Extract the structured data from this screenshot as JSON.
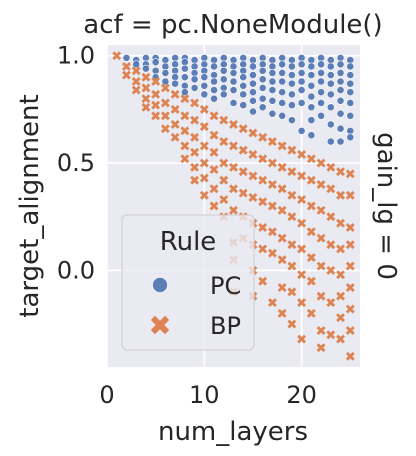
{
  "chart_data": {
    "type": "scatter",
    "title": "acf = pc.NoneModule()",
    "facet_row_label": "gain_lg = 0",
    "xlabel": "num_layers",
    "ylabel": "target_alignment",
    "xlim": [
      0,
      26
    ],
    "ylim": [
      -0.45,
      1.05
    ],
    "xticks": [
      {
        "value": 0,
        "label": "0"
      },
      {
        "value": 10,
        "label": "10"
      },
      {
        "value": 20,
        "label": "20"
      }
    ],
    "yticks": [
      {
        "value": 0.0,
        "label": "0.0"
      },
      {
        "value": 0.5,
        "label": "0.5"
      },
      {
        "value": 1.0,
        "label": "1.0"
      }
    ],
    "grid": true,
    "legend": {
      "title": "Rule",
      "placement": "lower-left"
    },
    "colors": {
      "PC": "#4c72b0",
      "BP": "#dd8452",
      "background": "#eaeaf2",
      "grid": "#ffffff"
    },
    "series": [
      {
        "name": "PC",
        "marker": "circle",
        "points": [
          [
            2,
            0.99
          ],
          [
            3,
            0.98
          ],
          [
            3,
            0.96
          ],
          [
            4,
            0.99
          ],
          [
            4,
            0.96
          ],
          [
            4,
            0.94
          ],
          [
            5,
            0.99
          ],
          [
            5,
            0.97
          ],
          [
            5,
            0.93
          ],
          [
            5,
            0.9
          ],
          [
            6,
            0.98
          ],
          [
            6,
            0.95
          ],
          [
            6,
            0.92
          ],
          [
            6,
            0.88
          ],
          [
            7,
            0.99
          ],
          [
            7,
            0.96
          ],
          [
            7,
            0.93
          ],
          [
            7,
            0.9
          ],
          [
            7,
            0.87
          ],
          [
            8,
            0.99
          ],
          [
            8,
            0.97
          ],
          [
            8,
            0.94
          ],
          [
            8,
            0.9
          ],
          [
            8,
            0.86
          ],
          [
            8,
            0.83
          ],
          [
            9,
            0.98
          ],
          [
            9,
            0.95
          ],
          [
            9,
            0.92
          ],
          [
            9,
            0.89
          ],
          [
            9,
            0.85
          ],
          [
            10,
            0.99
          ],
          [
            10,
            0.96
          ],
          [
            10,
            0.93
          ],
          [
            10,
            0.9
          ],
          [
            10,
            0.86
          ],
          [
            10,
            0.82
          ],
          [
            11,
            0.98
          ],
          [
            11,
            0.95
          ],
          [
            11,
            0.91
          ],
          [
            11,
            0.88
          ],
          [
            11,
            0.84
          ],
          [
            11,
            0.8
          ],
          [
            12,
            0.99
          ],
          [
            12,
            0.96
          ],
          [
            12,
            0.93
          ],
          [
            12,
            0.89
          ],
          [
            12,
            0.85
          ],
          [
            12,
            0.82
          ],
          [
            13,
            0.98
          ],
          [
            13,
            0.95
          ],
          [
            13,
            0.92
          ],
          [
            13,
            0.88
          ],
          [
            13,
            0.84
          ],
          [
            13,
            0.78
          ],
          [
            14,
            0.99
          ],
          [
            14,
            0.96
          ],
          [
            14,
            0.93
          ],
          [
            14,
            0.9
          ],
          [
            14,
            0.86
          ],
          [
            14,
            0.82
          ],
          [
            14,
            0.77
          ],
          [
            15,
            0.98
          ],
          [
            15,
            0.95
          ],
          [
            15,
            0.91
          ],
          [
            15,
            0.87
          ],
          [
            15,
            0.83
          ],
          [
            15,
            0.79
          ],
          [
            15,
            0.74
          ],
          [
            16,
            0.99
          ],
          [
            16,
            0.96
          ],
          [
            16,
            0.93
          ],
          [
            16,
            0.89
          ],
          [
            16,
            0.85
          ],
          [
            16,
            0.8
          ],
          [
            16,
            0.76
          ],
          [
            17,
            0.98
          ],
          [
            17,
            0.95
          ],
          [
            17,
            0.92
          ],
          [
            17,
            0.88
          ],
          [
            17,
            0.84
          ],
          [
            17,
            0.79
          ],
          [
            17,
            0.73
          ],
          [
            18,
            0.99
          ],
          [
            18,
            0.96
          ],
          [
            18,
            0.92
          ],
          [
            18,
            0.88
          ],
          [
            18,
            0.83
          ],
          [
            18,
            0.78
          ],
          [
            18,
            0.72
          ],
          [
            19,
            0.98
          ],
          [
            19,
            0.95
          ],
          [
            19,
            0.91
          ],
          [
            19,
            0.87
          ],
          [
            19,
            0.82
          ],
          [
            19,
            0.77
          ],
          [
            19,
            0.7
          ],
          [
            20,
            0.99
          ],
          [
            20,
            0.96
          ],
          [
            20,
            0.92
          ],
          [
            20,
            0.88
          ],
          [
            20,
            0.84
          ],
          [
            20,
            0.78
          ],
          [
            20,
            0.65
          ],
          [
            21,
            0.98
          ],
          [
            21,
            0.95
          ],
          [
            21,
            0.91
          ],
          [
            21,
            0.86
          ],
          [
            21,
            0.81
          ],
          [
            21,
            0.76
          ],
          [
            21,
            0.7
          ],
          [
            21,
            0.63
          ],
          [
            22,
            0.99
          ],
          [
            22,
            0.96
          ],
          [
            22,
            0.92
          ],
          [
            22,
            0.88
          ],
          [
            22,
            0.83
          ],
          [
            22,
            0.78
          ],
          [
            22,
            0.72
          ],
          [
            23,
            0.98
          ],
          [
            23,
            0.95
          ],
          [
            23,
            0.91
          ],
          [
            23,
            0.87
          ],
          [
            23,
            0.82
          ],
          [
            23,
            0.76
          ],
          [
            23,
            0.68
          ],
          [
            23,
            0.6
          ],
          [
            24,
            0.99
          ],
          [
            24,
            0.96
          ],
          [
            24,
            0.92
          ],
          [
            24,
            0.88
          ],
          [
            24,
            0.84
          ],
          [
            24,
            0.79
          ],
          [
            24,
            0.73
          ],
          [
            24,
            0.66
          ],
          [
            24,
            0.6
          ],
          [
            25,
            0.98
          ],
          [
            25,
            0.95
          ],
          [
            25,
            0.91
          ],
          [
            25,
            0.87
          ],
          [
            25,
            0.83
          ],
          [
            25,
            0.78
          ],
          [
            25,
            0.72
          ],
          [
            25,
            0.65
          ],
          [
            25,
            0.62
          ]
        ]
      },
      {
        "name": "BP",
        "marker": "x",
        "points": [
          [
            1,
            1.0
          ],
          [
            2,
            0.95
          ],
          [
            2,
            0.91
          ],
          [
            3,
            0.93
          ],
          [
            3,
            0.88
          ],
          [
            3,
            0.84
          ],
          [
            4,
            0.9
          ],
          [
            4,
            0.85
          ],
          [
            4,
            0.8
          ],
          [
            4,
            0.76
          ],
          [
            5,
            0.88
          ],
          [
            5,
            0.82
          ],
          [
            5,
            0.77
          ],
          [
            5,
            0.72
          ],
          [
            6,
            0.85
          ],
          [
            6,
            0.78
          ],
          [
            6,
            0.72
          ],
          [
            6,
            0.66
          ],
          [
            7,
            0.82
          ],
          [
            7,
            0.75
          ],
          [
            7,
            0.68
          ],
          [
            7,
            0.62
          ],
          [
            8,
            0.8
          ],
          [
            8,
            0.72
          ],
          [
            8,
            0.65
          ],
          [
            8,
            0.58
          ],
          [
            8,
            0.52
          ],
          [
            9,
            0.78
          ],
          [
            9,
            0.7
          ],
          [
            9,
            0.62
          ],
          [
            9,
            0.55
          ],
          [
            9,
            0.48
          ],
          [
            9,
            0.42
          ],
          [
            10,
            0.75
          ],
          [
            10,
            0.67
          ],
          [
            10,
            0.58
          ],
          [
            10,
            0.5
          ],
          [
            10,
            0.43
          ],
          [
            10,
            0.35
          ],
          [
            11,
            0.72
          ],
          [
            11,
            0.63
          ],
          [
            11,
            0.55
          ],
          [
            11,
            0.47
          ],
          [
            11,
            0.38
          ],
          [
            11,
            0.3
          ],
          [
            12,
            0.7
          ],
          [
            12,
            0.6
          ],
          [
            12,
            0.5
          ],
          [
            12,
            0.42
          ],
          [
            12,
            0.33
          ],
          [
            12,
            0.25
          ],
          [
            13,
            0.68
          ],
          [
            13,
            0.58
          ],
          [
            13,
            0.48
          ],
          [
            13,
            0.38
          ],
          [
            13,
            0.28
          ],
          [
            13,
            0.13
          ],
          [
            13,
            0.05
          ],
          [
            13,
            -0.1
          ],
          [
            14,
            0.66
          ],
          [
            14,
            0.56
          ],
          [
            14,
            0.46
          ],
          [
            14,
            0.36
          ],
          [
            14,
            0.25
          ],
          [
            14,
            0.15
          ],
          [
            15,
            0.64
          ],
          [
            15,
            0.54
          ],
          [
            15,
            0.44
          ],
          [
            15,
            0.34
          ],
          [
            15,
            0.22
          ],
          [
            15,
            0.12
          ],
          [
            15,
            0.0
          ],
          [
            15,
            -0.12
          ],
          [
            16,
            0.62
          ],
          [
            16,
            0.52
          ],
          [
            16,
            0.42
          ],
          [
            16,
            0.32
          ],
          [
            16,
            0.2
          ],
          [
            16,
            0.1
          ],
          [
            16,
            -0.05
          ],
          [
            17,
            0.6
          ],
          [
            17,
            0.5
          ],
          [
            17,
            0.4
          ],
          [
            17,
            0.3
          ],
          [
            17,
            0.18
          ],
          [
            17,
            0.08
          ],
          [
            17,
            -0.15
          ],
          [
            18,
            0.58
          ],
          [
            18,
            0.48
          ],
          [
            18,
            0.38
          ],
          [
            18,
            0.28
          ],
          [
            18,
            0.15
          ],
          [
            18,
            0.05
          ],
          [
            18,
            -0.08
          ],
          [
            18,
            -0.2
          ],
          [
            19,
            0.56
          ],
          [
            19,
            0.46
          ],
          [
            19,
            0.35
          ],
          [
            19,
            0.25
          ],
          [
            19,
            0.12
          ],
          [
            19,
            0.02
          ],
          [
            19,
            -0.1
          ],
          [
            19,
            -0.25
          ],
          [
            20,
            0.54
          ],
          [
            20,
            0.44
          ],
          [
            20,
            0.33
          ],
          [
            20,
            0.22
          ],
          [
            20,
            0.1
          ],
          [
            20,
            -0.02
          ],
          [
            20,
            -0.15
          ],
          [
            20,
            -0.32
          ],
          [
            21,
            0.52
          ],
          [
            21,
            0.42
          ],
          [
            21,
            0.3
          ],
          [
            21,
            0.18
          ],
          [
            21,
            0.06
          ],
          [
            21,
            -0.05
          ],
          [
            21,
            -0.2
          ],
          [
            22,
            0.5
          ],
          [
            22,
            0.4
          ],
          [
            22,
            0.28
          ],
          [
            22,
            0.15
          ],
          [
            22,
            0.02
          ],
          [
            22,
            -0.12
          ],
          [
            22,
            -0.28
          ],
          [
            22,
            -0.36
          ],
          [
            23,
            0.48
          ],
          [
            23,
            0.38
          ],
          [
            23,
            0.25
          ],
          [
            23,
            0.12
          ],
          [
            23,
            0.0
          ],
          [
            23,
            -0.15
          ],
          [
            23,
            -0.3
          ],
          [
            24,
            0.46
          ],
          [
            24,
            0.35
          ],
          [
            24,
            0.22
          ],
          [
            24,
            0.1
          ],
          [
            24,
            -0.02
          ],
          [
            24,
            -0.12
          ],
          [
            24,
            -0.22
          ],
          [
            24,
            -0.32
          ],
          [
            25,
            0.45
          ],
          [
            25,
            0.35
          ],
          [
            25,
            0.2
          ],
          [
            25,
            0.12
          ],
          [
            25,
            0.02
          ],
          [
            25,
            -0.08
          ],
          [
            25,
            -0.18
          ],
          [
            25,
            -0.28
          ],
          [
            25,
            -0.4
          ]
        ]
      }
    ]
  }
}
